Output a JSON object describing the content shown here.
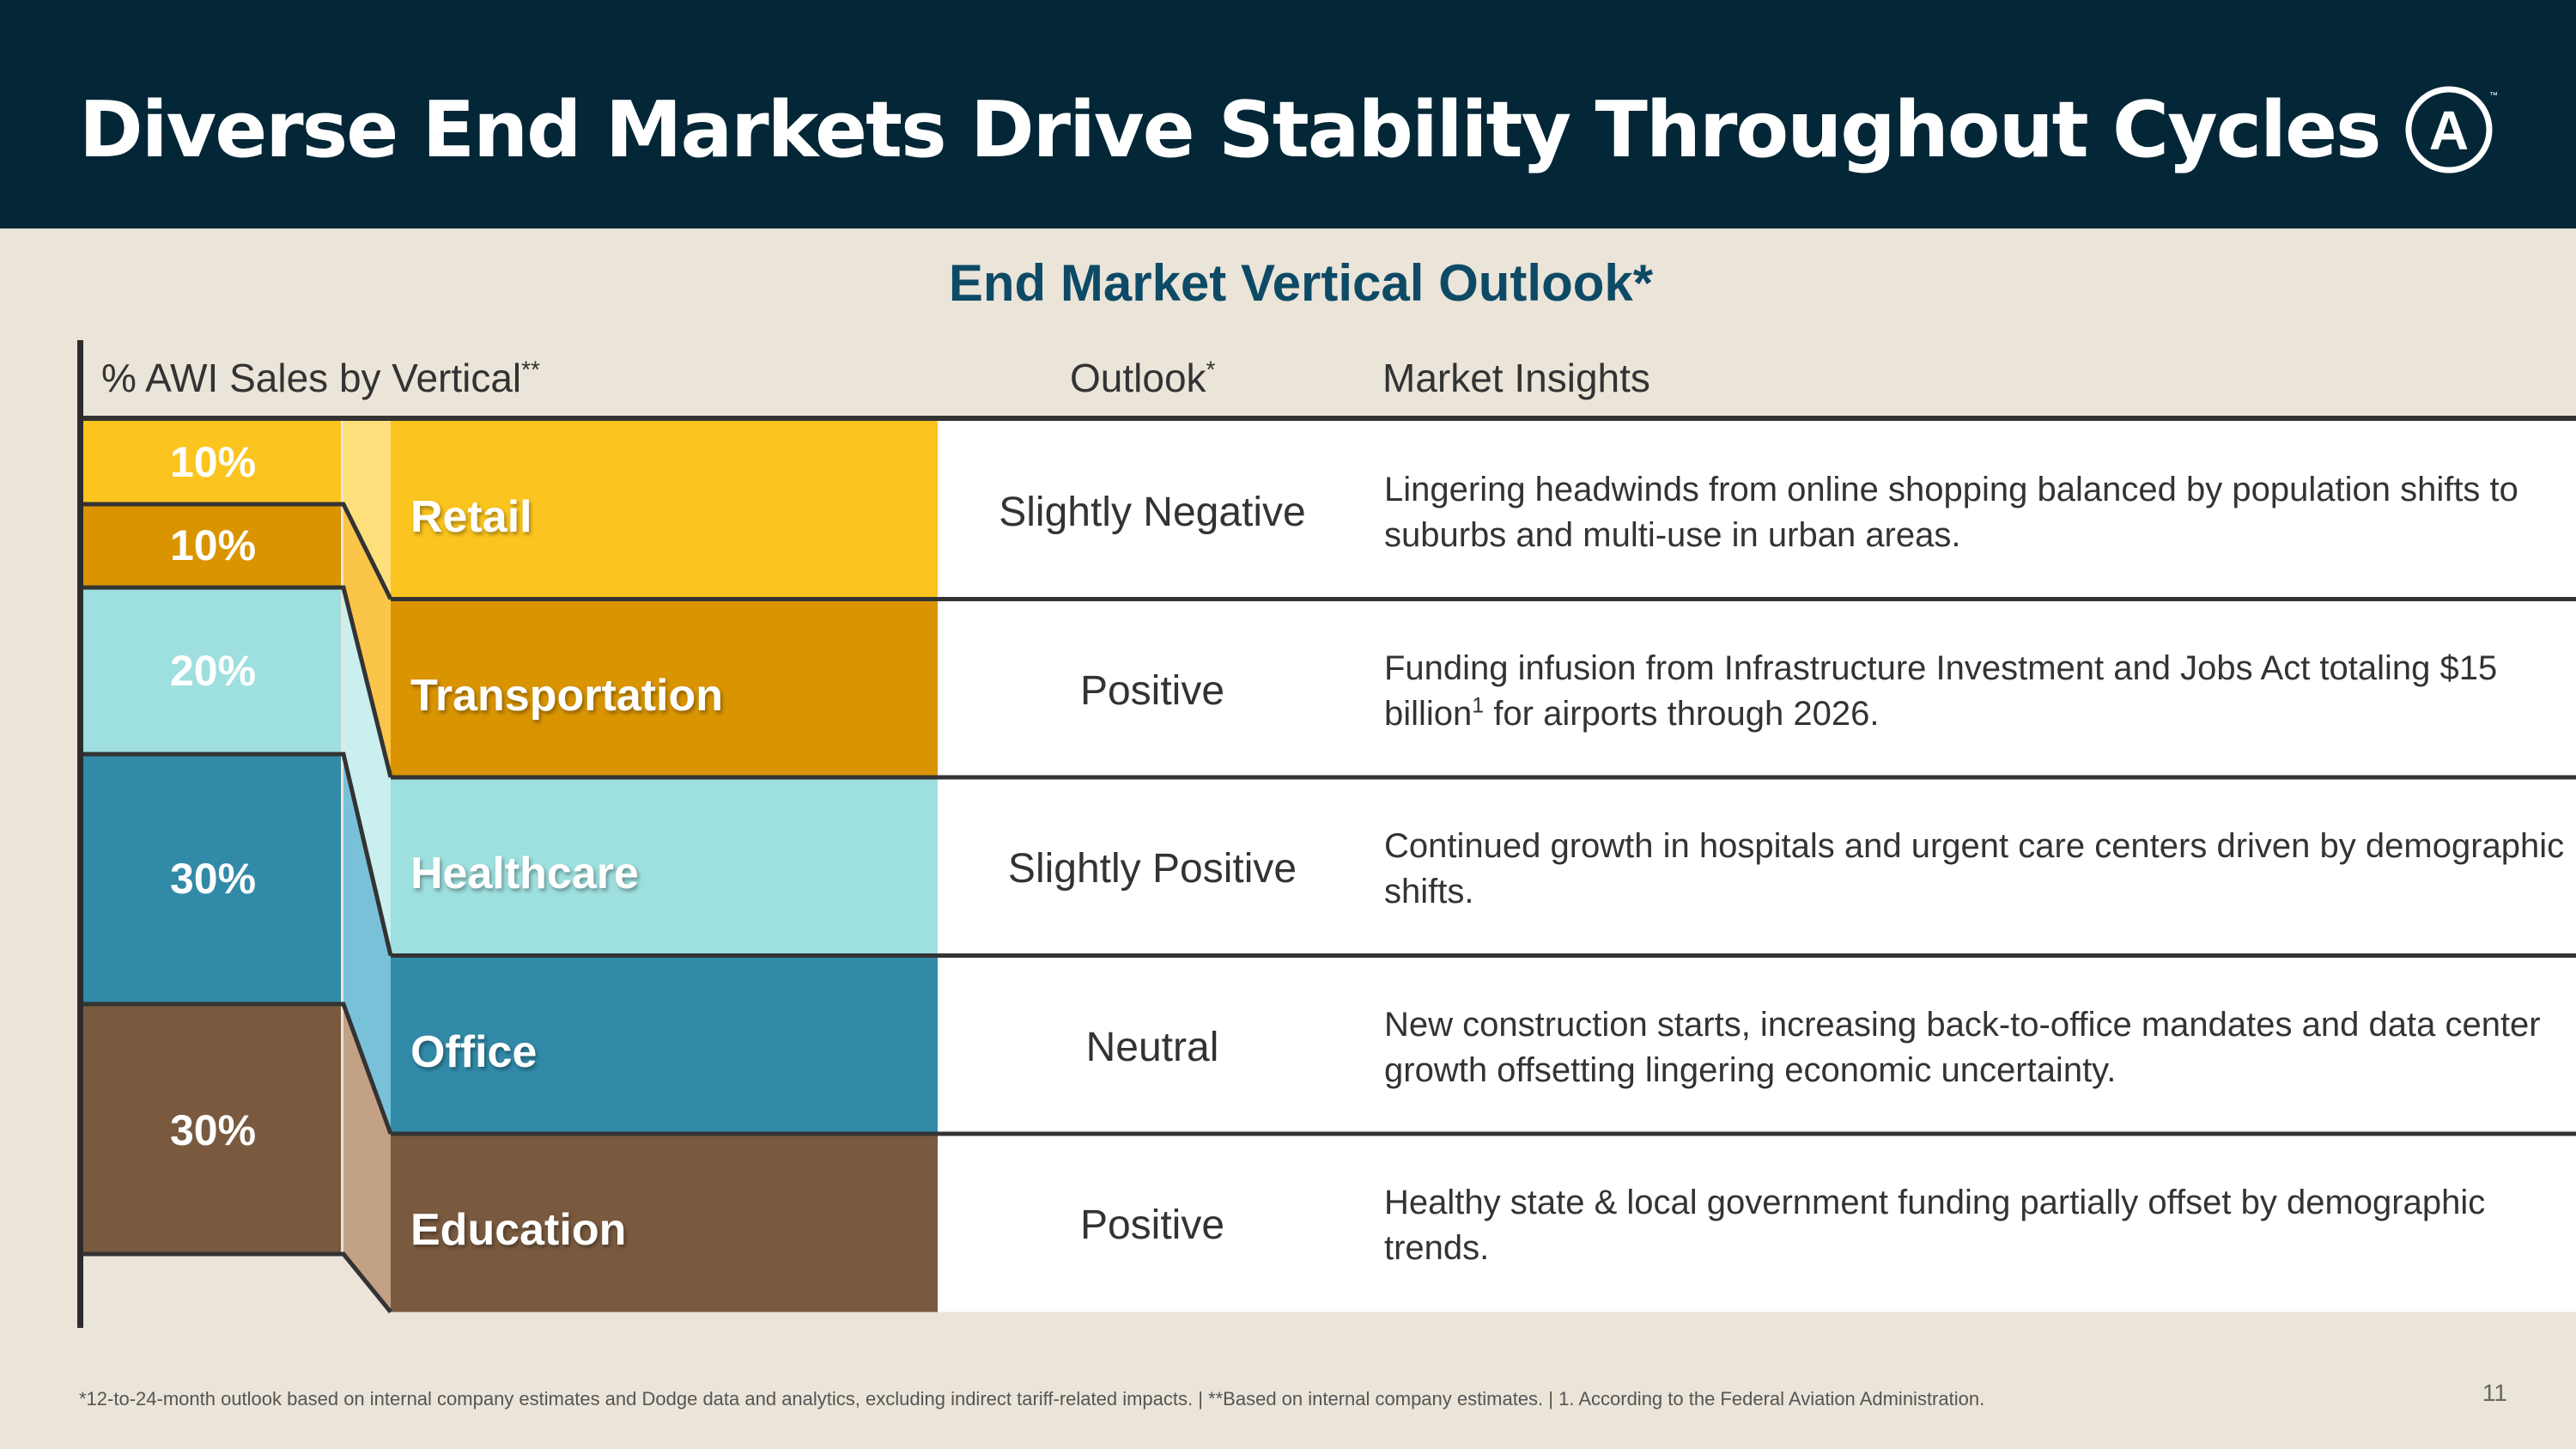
{
  "header": {
    "title": "Diverse End Markets Drive Stability Throughout Cycles",
    "logo_letter": "A",
    "logo_mark": "™"
  },
  "subtitle": "End Market Vertical Outlook*",
  "columns": {
    "sales": "% AWI Sales by Vertical",
    "sales_mark": "**",
    "outlook": "Outlook",
    "outlook_mark": "*",
    "insights": "Market Insights"
  },
  "shares": [
    {
      "label": "10%",
      "value": 10,
      "color": "#fbc41e"
    },
    {
      "label": "10%",
      "value": 10,
      "color": "#d99400"
    },
    {
      "label": "20%",
      "value": 20,
      "color": "#9edfdf"
    },
    {
      "label": "30%",
      "value": 30,
      "color": "#318aa8"
    },
    {
      "label": "30%",
      "value": 30,
      "color": "#795a3f"
    }
  ],
  "verticals": [
    {
      "name": "Retail",
      "outlook": "Slightly Negative",
      "insight": "Lingering headwinds from online shopping balanced by population shifts to suburbs and multi-use in urban areas."
    },
    {
      "name": "Transportation",
      "outlook": "Positive",
      "insight_a": "Funding infusion from Infrastructure Investment and Jobs Act totaling $15 billion",
      "insight_sup": "1",
      "insight_b": " for airports through 2026."
    },
    {
      "name": "Healthcare",
      "outlook": "Slightly Positive",
      "insight": "Continued growth in hospitals and urgent care centers driven by demographic shifts."
    },
    {
      "name": "Office",
      "outlook": "Neutral",
      "insight": "New construction starts, increasing back-to-office mandates and data center growth offsetting lingering economic uncertainty."
    },
    {
      "name": "Education",
      "outlook": "Positive",
      "insight": "Healthy state & local government funding partially offset by demographic trends."
    }
  ],
  "footnote": "*12-to-24-month outlook based on internal company estimates and Dodge data and analytics, excluding indirect tariff-related impacts.   |   **Based on internal company estimates.   |   1. According to the Federal Aviation Administration.",
  "page_number": "11"
}
